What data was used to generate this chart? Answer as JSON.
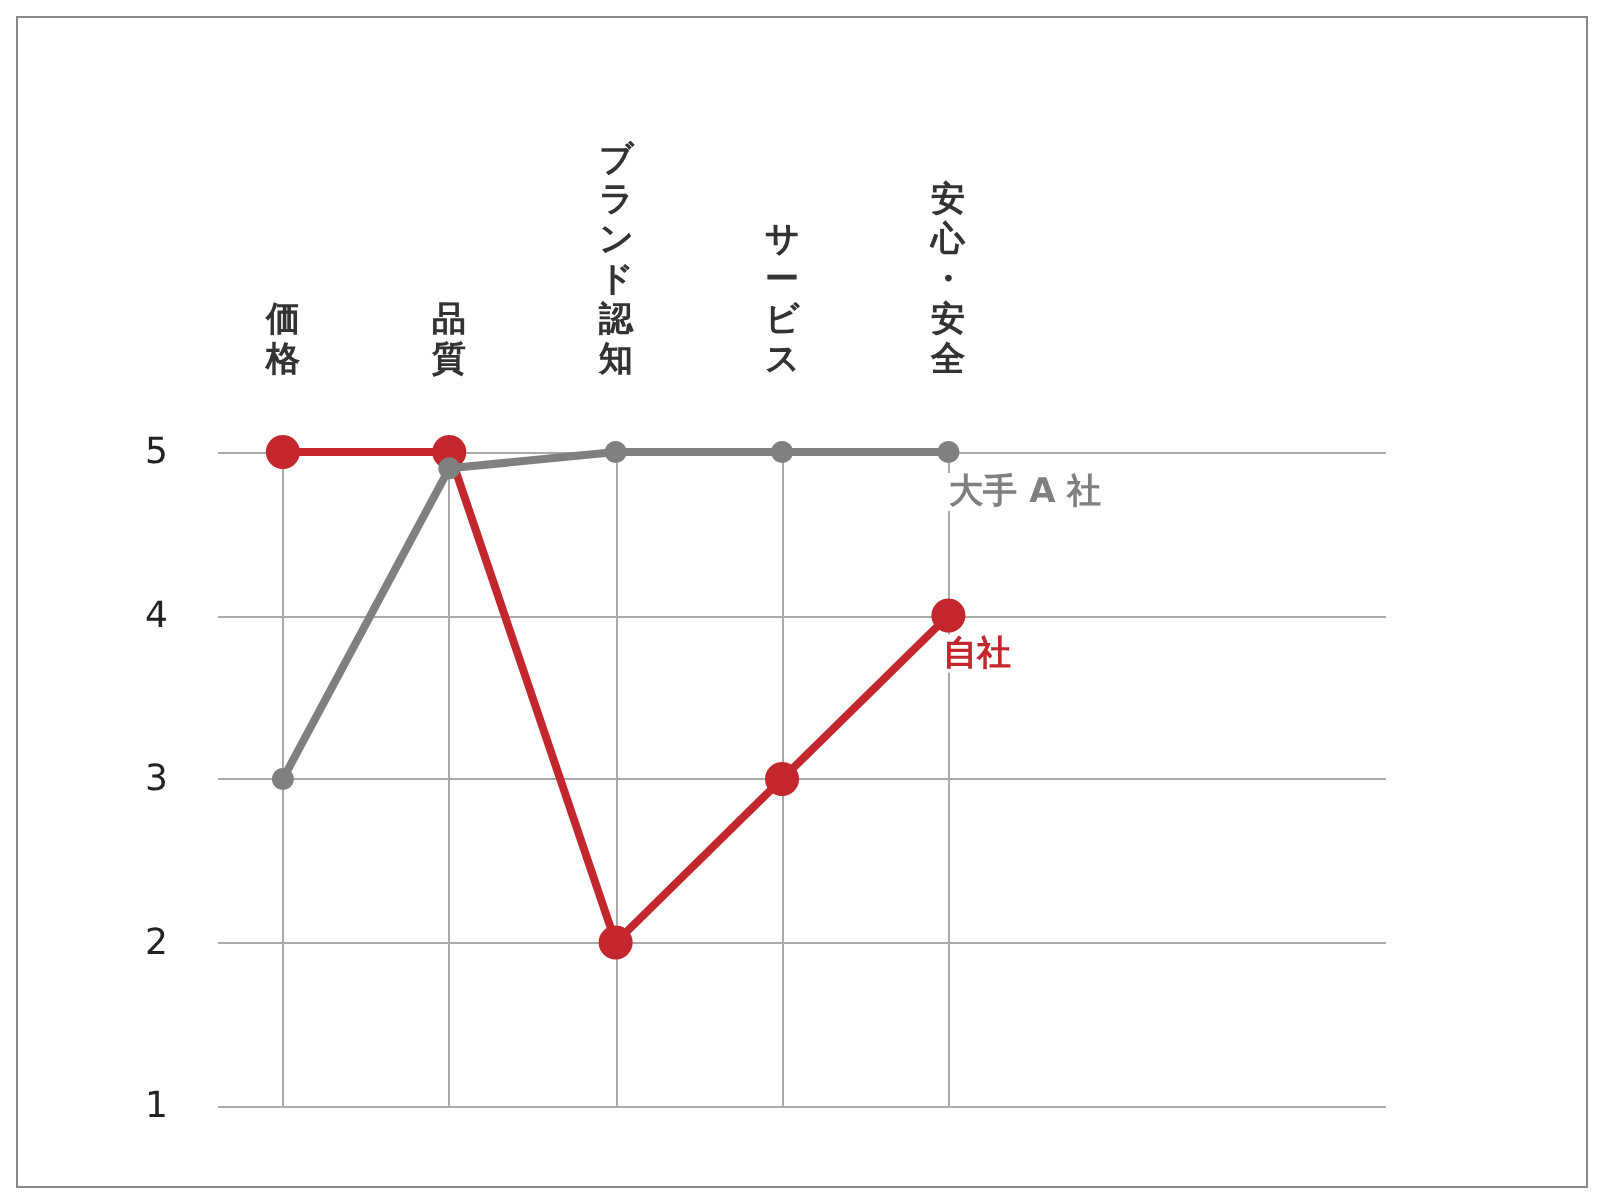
{
  "chart_data": {
    "type": "line",
    "categories": [
      "価格",
      "品質",
      "ブランド認知",
      "サービス",
      "安心・安全"
    ],
    "series": [
      {
        "name": "大手 A 社",
        "color": "#808080",
        "values": [
          3,
          4.9,
          5,
          5,
          5
        ]
      },
      {
        "name": "自社",
        "color": "#c4262e",
        "values": [
          5,
          5,
          2,
          3,
          4
        ]
      }
    ],
    "ylim": [
      1,
      5
    ],
    "yticks": [
      1,
      2,
      3,
      4,
      5
    ],
    "grid": true,
    "legend": false,
    "marker": "circle",
    "line_style": "solid"
  }
}
